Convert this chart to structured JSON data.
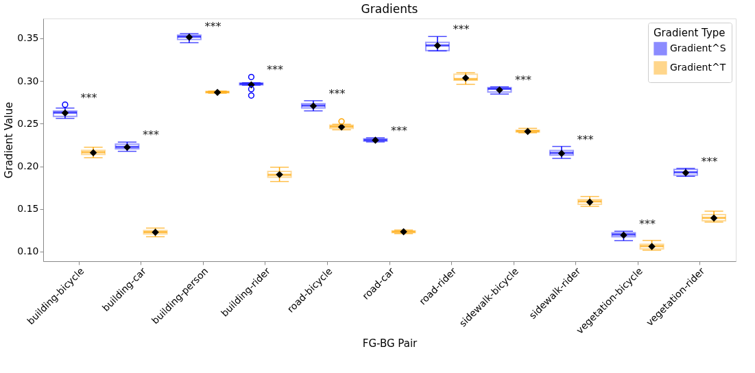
{
  "chart_data": {
    "type": "box",
    "title": "Gradients",
    "xlabel": "FG-BG Pair",
    "ylabel": "Gradient Value",
    "legend_title": "Gradient Type",
    "legend": "top right",
    "grid": false,
    "categories": [
      "building-bicycle",
      "building-car",
      "building-person",
      "building-rider",
      "road-bicycle",
      "road-car",
      "road-rider",
      "sidewalk-bicycle",
      "sidewalk-rider",
      "vegetation-bicycle",
      "vegetation-rider"
    ],
    "ylim": [
      0.0887,
      0.3733
    ],
    "yticks": [
      {
        "value": 0.1,
        "label": "0.10"
      },
      {
        "value": 0.15,
        "label": "0.15"
      },
      {
        "value": 0.2,
        "label": "0.20"
      },
      {
        "value": 0.25,
        "label": "0.25"
      },
      {
        "value": 0.3,
        "label": "0.30"
      },
      {
        "value": 0.35,
        "label": "0.35"
      }
    ],
    "series": [
      {
        "name": "Gradient^S",
        "color": "#0000ff",
        "boxes": [
          {
            "low": 0.2562,
            "q1": 0.2586,
            "median": 0.2629,
            "q3": 0.2648,
            "high": 0.2683,
            "mean": 0.2625,
            "outliers": [
              0.2723
            ]
          },
          {
            "low": 0.2176,
            "q1": 0.2206,
            "median": 0.2227,
            "q3": 0.226,
            "high": 0.2284,
            "mean": 0.2224
          },
          {
            "low": 0.3449,
            "q1": 0.3487,
            "median": 0.3519,
            "q3": 0.3538,
            "high": 0.3556,
            "mean": 0.3513
          },
          {
            "low": 0.2951,
            "q1": 0.2955,
            "median": 0.2967,
            "q3": 0.2975,
            "high": 0.298,
            "mean": 0.2956,
            "outliers": [
              0.3047,
              0.2905,
              0.283
            ]
          },
          {
            "low": 0.265,
            "q1": 0.2683,
            "median": 0.2712,
            "q3": 0.2734,
            "high": 0.2769,
            "mean": 0.2707
          },
          {
            "low": 0.2286,
            "q1": 0.2295,
            "median": 0.2308,
            "q3": 0.2322,
            "high": 0.2334,
            "mean": 0.2306
          },
          {
            "low": 0.3353,
            "q1": 0.3358,
            "median": 0.3417,
            "q3": 0.3454,
            "high": 0.3522,
            "mean": 0.3415
          },
          {
            "low": 0.2847,
            "q1": 0.2871,
            "median": 0.2908,
            "q3": 0.2924,
            "high": 0.2932,
            "mean": 0.2895
          },
          {
            "low": 0.2093,
            "q1": 0.2131,
            "median": 0.2158,
            "q3": 0.2185,
            "high": 0.2233,
            "mean": 0.2152
          },
          {
            "low": 0.1129,
            "q1": 0.1174,
            "median": 0.1201,
            "q3": 0.122,
            "high": 0.1239,
            "mean": 0.1193
          },
          {
            "low": 0.1882,
            "q1": 0.1895,
            "median": 0.193,
            "q3": 0.1965,
            "high": 0.1976,
            "mean": 0.1924
          }
        ]
      },
      {
        "name": "Gradient^T",
        "color": "#ffa500",
        "boxes": [
          {
            "low": 0.2101,
            "q1": 0.2139,
            "median": 0.2166,
            "q3": 0.2187,
            "high": 0.2224,
            "mean": 0.216
          },
          {
            "low": 0.1174,
            "q1": 0.1207,
            "median": 0.1228,
            "q3": 0.1247,
            "high": 0.1276,
            "mean": 0.1226
          },
          {
            "low": 0.2857,
            "q1": 0.2862,
            "median": 0.287,
            "q3": 0.2877,
            "high": 0.2882,
            "mean": 0.2867
          },
          {
            "low": 0.1822,
            "q1": 0.1871,
            "median": 0.19,
            "q3": 0.1941,
            "high": 0.1989,
            "mean": 0.1903
          },
          {
            "low": 0.2428,
            "q1": 0.2444,
            "median": 0.2466,
            "q3": 0.2482,
            "high": 0.2493,
            "mean": 0.2461,
            "outliers": [
              0.2527
            ]
          },
          {
            "low": 0.1211,
            "q1": 0.1222,
            "median": 0.1233,
            "q3": 0.1242,
            "high": 0.1252,
            "mean": 0.1233
          },
          {
            "low": 0.2961,
            "q1": 0.301,
            "median": 0.3023,
            "q3": 0.308,
            "high": 0.3098,
            "mean": 0.3036
          },
          {
            "low": 0.2393,
            "q1": 0.2402,
            "median": 0.2412,
            "q3": 0.2422,
            "high": 0.2445,
            "mean": 0.2409
          },
          {
            "low": 0.1531,
            "q1": 0.1555,
            "median": 0.1589,
            "q3": 0.1611,
            "high": 0.1646,
            "mean": 0.1581
          },
          {
            "low": 0.1016,
            "q1": 0.1032,
            "median": 0.1064,
            "q3": 0.1086,
            "high": 0.1131,
            "mean": 0.1059
          },
          {
            "low": 0.1346,
            "q1": 0.1362,
            "median": 0.1396,
            "q3": 0.1434,
            "high": 0.1474,
            "mean": 0.1393
          }
        ]
      }
    ],
    "annotations": [
      "***",
      "***",
      "***",
      "***",
      "***",
      "***",
      "***",
      "***",
      "***",
      "***",
      "***"
    ]
  }
}
